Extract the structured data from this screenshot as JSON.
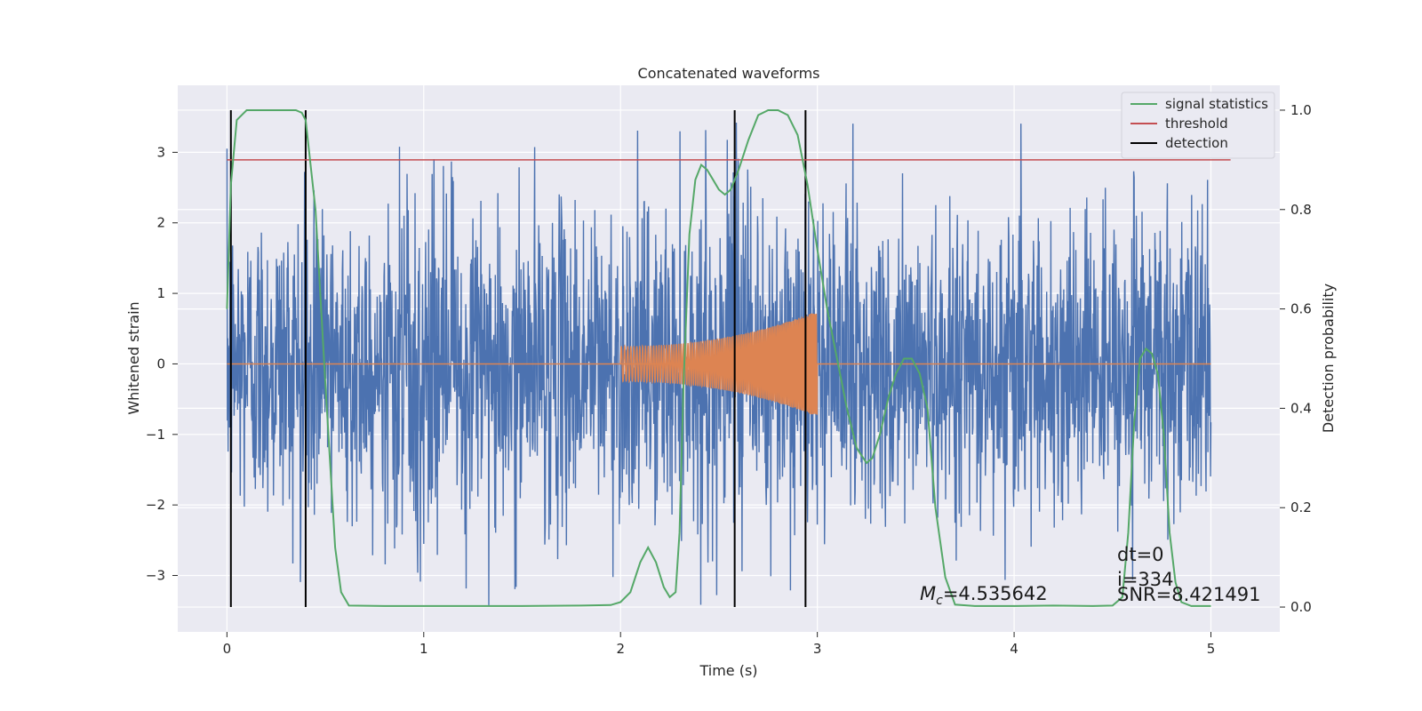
{
  "chart_data": {
    "type": "line",
    "title": "Concatenated waveforms",
    "xlabel": "Time (s)",
    "ylabel_left": "Whitened strain",
    "ylabel_right": "Detection probability",
    "xlim": [
      -0.25,
      5.35
    ],
    "ylim_left": [
      -3.8,
      3.95
    ],
    "ylim_right": [
      -0.05,
      1.05
    ],
    "grid": true,
    "legend_position": "top-right",
    "x_ticks": [
      0,
      1,
      2,
      3,
      4,
      5
    ],
    "x_tick_labels": [
      "0",
      "1",
      "2",
      "3",
      "4",
      "5"
    ],
    "y_ticks_left": [
      -3,
      -2,
      -1,
      0,
      1,
      2,
      3
    ],
    "y_tick_labels_left": [
      "−3",
      "−2",
      "−1",
      "0",
      "1",
      "2",
      "3"
    ],
    "y_ticks_right": [
      0.0,
      0.2,
      0.4,
      0.6,
      0.8,
      1.0
    ],
    "y_tick_labels_right": [
      "0.0",
      "0.2",
      "0.4",
      "0.6",
      "0.8",
      "1.0"
    ],
    "series": [
      {
        "name": "signal statistics",
        "axis": "right",
        "color": "#55a868",
        "x": [
          0.0,
          0.02,
          0.05,
          0.1,
          0.15,
          0.25,
          0.35,
          0.38,
          0.4,
          0.45,
          0.5,
          0.55,
          0.58,
          0.62,
          0.8,
          1.0,
          1.5,
          1.8,
          1.95,
          2.0,
          2.05,
          2.1,
          2.14,
          2.18,
          2.22,
          2.25,
          2.28,
          2.3,
          2.32,
          2.35,
          2.38,
          2.41,
          2.44,
          2.47,
          2.5,
          2.53,
          2.56,
          2.6,
          2.65,
          2.7,
          2.75,
          2.8,
          2.85,
          2.9,
          2.95,
          3.0,
          3.05,
          3.1,
          3.15,
          3.2,
          3.25,
          3.28,
          3.32,
          3.36,
          3.4,
          3.44,
          3.48,
          3.52,
          3.56,
          3.6,
          3.65,
          3.7,
          3.8,
          4.0,
          4.2,
          4.4,
          4.5,
          4.55,
          4.58,
          4.61,
          4.64,
          4.67,
          4.7,
          4.73,
          4.76,
          4.79,
          4.82,
          4.85,
          4.9,
          5.0
        ],
        "y": [
          0.6,
          0.85,
          0.98,
          1.0,
          1.0,
          1.0,
          1.0,
          0.995,
          0.98,
          0.8,
          0.45,
          0.12,
          0.03,
          0.003,
          0.002,
          0.002,
          0.002,
          0.003,
          0.004,
          0.01,
          0.03,
          0.09,
          0.12,
          0.09,
          0.04,
          0.02,
          0.03,
          0.15,
          0.45,
          0.75,
          0.86,
          0.89,
          0.88,
          0.86,
          0.84,
          0.83,
          0.84,
          0.88,
          0.94,
          0.99,
          1.0,
          1.0,
          0.99,
          0.95,
          0.85,
          0.72,
          0.6,
          0.5,
          0.4,
          0.32,
          0.29,
          0.3,
          0.35,
          0.42,
          0.47,
          0.5,
          0.5,
          0.47,
          0.4,
          0.2,
          0.06,
          0.005,
          0.002,
          0.002,
          0.003,
          0.002,
          0.003,
          0.02,
          0.15,
          0.37,
          0.5,
          0.52,
          0.51,
          0.47,
          0.35,
          0.15,
          0.05,
          0.01,
          0.002,
          0.002
        ]
      },
      {
        "name": "threshold",
        "axis": "right",
        "color": "#c44e52",
        "x": [
          0.0,
          5.1
        ],
        "y": [
          0.9,
          0.9
        ]
      },
      {
        "name": "detection",
        "axis": "right",
        "color": "#000000",
        "x_positions": [
          0.02,
          0.4,
          2.58,
          2.94
        ],
        "y_range": [
          0.0,
          1.0
        ]
      },
      {
        "name": "",
        "axis": "left",
        "color": "#4c72b0",
        "description": "whitened noise plus injected signal",
        "x_range": [
          0.0,
          5.0
        ],
        "typical_amplitude": 1.1,
        "y_min": -3.45,
        "y_max": 3.6
      },
      {
        "name": "",
        "axis": "left",
        "color": "#dd8452",
        "description": "injected chirp template",
        "x_range": [
          2.0,
          3.0
        ],
        "amplitude_start": 0.25,
        "amplitude_end": 0.75
      }
    ],
    "annotations": {
      "mc_symbol": "M",
      "mc_subscript": "c",
      "mc_value": "=4.535642",
      "dt": "dt=0",
      "i": "i=334",
      "snr": "SNR=8.421491"
    }
  }
}
